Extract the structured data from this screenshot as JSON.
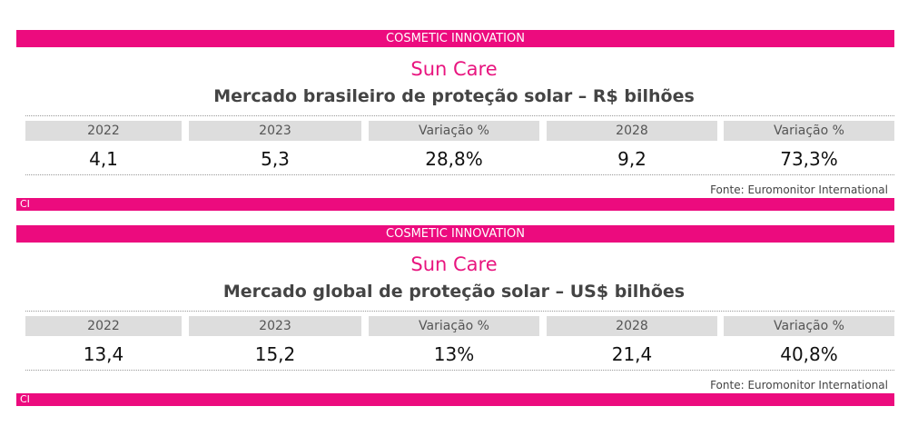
{
  "panels": [
    {
      "banner": "COSMETIC INNOVATION",
      "brand": "Sun Care",
      "subtitle": "Mercado brasileiro de proteção solar – R$ bilhões",
      "table": {
        "headers": [
          "2022",
          "2023",
          "Variação %",
          "2028",
          "Variação %"
        ],
        "values": [
          "4,1",
          "5,3",
          "28,8%",
          "9,2",
          "73,3%"
        ]
      },
      "source": "Fonte: Euromonitor International",
      "footer": "CI"
    },
    {
      "banner": "COSMETIC INNOVATION",
      "brand": "Sun Care",
      "subtitle": "Mercado global de proteção solar – US$ bilhões",
      "table": {
        "headers": [
          "2022",
          "2023",
          "Variação %",
          "2028",
          "Variação %"
        ],
        "values": [
          "13,4",
          "15,2",
          "13%",
          "21,4",
          "40,8%"
        ]
      },
      "source": "Fonte: Euromonitor International",
      "footer": "CI"
    }
  ]
}
